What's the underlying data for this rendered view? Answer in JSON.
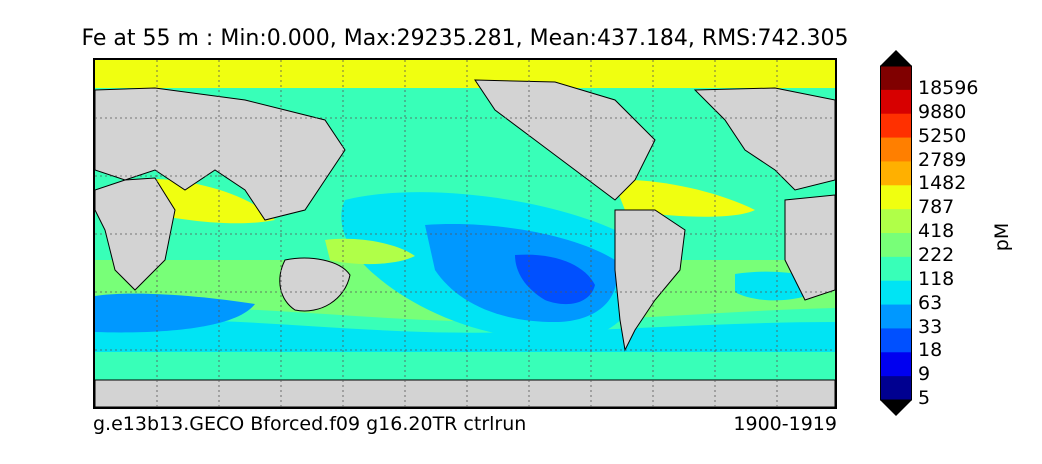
{
  "title": "Fe at 55 m : Min:0.000, Max:29235.281, Mean:437.184, RMS:742.305",
  "footer": {
    "run_name": "g.e13b13.GECO Bforced.f09 g16.20TR ctrlrun",
    "period": "1900-1919"
  },
  "colorbar": {
    "units": "pM",
    "labels": [
      "18596",
      "9880",
      "5250",
      "2789",
      "1482",
      "787",
      "418",
      "222",
      "118",
      "63",
      "33",
      "18",
      "9",
      "5"
    ],
    "colors": [
      "#800000",
      "#d70000",
      "#ff3000",
      "#ff7f00",
      "#ffb000",
      "#f0ff10",
      "#b0ff48",
      "#78ff78",
      "#38ffb8",
      "#00e4f4",
      "#0098ff",
      "#0050ff",
      "#0000f0",
      "#000090"
    ],
    "over_color": "#000000",
    "under_color": "#000000"
  },
  "map": {
    "land_color": "#d3d3d3",
    "grid": "dotted"
  }
}
